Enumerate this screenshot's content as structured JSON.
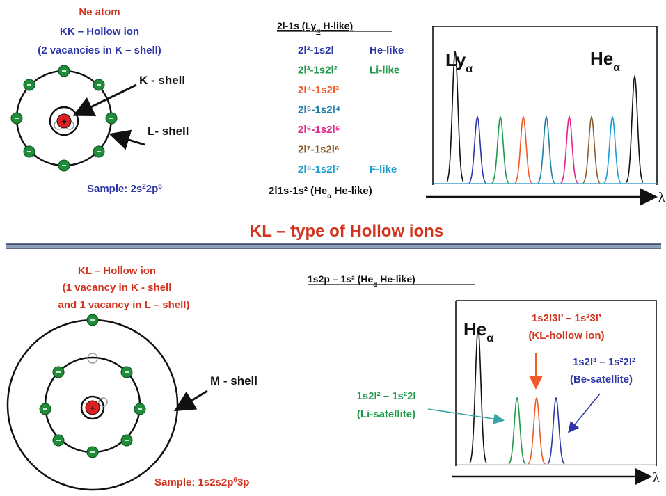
{
  "colors": {
    "red": "#d2341f",
    "blue": "#2c36a8",
    "green": "#1e9a4a",
    "orange": "#f05a28",
    "teal": "#1f7fa5",
    "magenta": "#e0248a",
    "brown": "#8b5a2b",
    "cyan": "#1a9ccf",
    "black": "#111111",
    "electron": "#1f8c3a",
    "nucleus": "#e02020",
    "divider": "#8fa0b8"
  },
  "top": {
    "atom_title": "Ne atom",
    "ion_name": "KK – Hollow  ion",
    "ion_desc": "(2 vacancies in K – shell)",
    "k_shell_label": "K - shell",
    "l_shell_label": "L- shell",
    "sample_label": "Sample: 2s",
    "sample_sup1": "2",
    "sample_mid": "2p",
    "sample_sup2": "6",
    "transitions_header": "2l-1s (Ly",
    "transitions_header_sub": "α",
    "transitions_header_end": " H-like)",
    "transitions": [
      {
        "formula": "2l²-1s2l",
        "note": "He-like"
      },
      {
        "formula": "2l³-1s2l²",
        "note": "Li-like"
      },
      {
        "formula": "2l⁴-1s2l³",
        "note": ""
      },
      {
        "formula": "2l⁵-1s2l⁴",
        "note": ""
      },
      {
        "formula": "2l⁶-1s2l⁵",
        "note": ""
      },
      {
        "formula": "2l⁷-1s2l⁶",
        "note": ""
      },
      {
        "formula": "2l⁸-1s2l⁷",
        "note": "F-like"
      }
    ],
    "last_transition": "2l1s-1s² (He",
    "last_transition_sub": "α",
    "last_transition_end": " He-like)",
    "peak_left": "Ly",
    "peak_left_sub": "α",
    "peak_right": "He",
    "peak_right_sub": "α",
    "axis_label": "λ"
  },
  "section_title": "KL – type of Hollow ions",
  "bottom": {
    "ion_name": "KL – Hollow  ion",
    "ion_desc1": "(1 vacancy in K - shell",
    "ion_desc2": "and 1 vacancy in L – shell)",
    "m_shell_label": "M - shell",
    "sample_label": "Sample: 1s2s2p",
    "sample_sup": "6",
    "sample_end": "3p",
    "transition_header": "1s2p – 1s² (He",
    "transition_header_sub": "α",
    "transition_header_end": " He-like)",
    "peak_label": "He",
    "peak_label_sub": "α",
    "kl_line1": "1s2l3l’ – 1s²3l’",
    "kl_line2": "(KL-hollow  ion)",
    "be_line1": "1s2l³ – 1s²2l²",
    "be_line2": "(Be-satellite)",
    "li_line1": "1s2l² – 1s²2l",
    "li_line2": "(Li-satellite)",
    "axis_label": "λ"
  }
}
